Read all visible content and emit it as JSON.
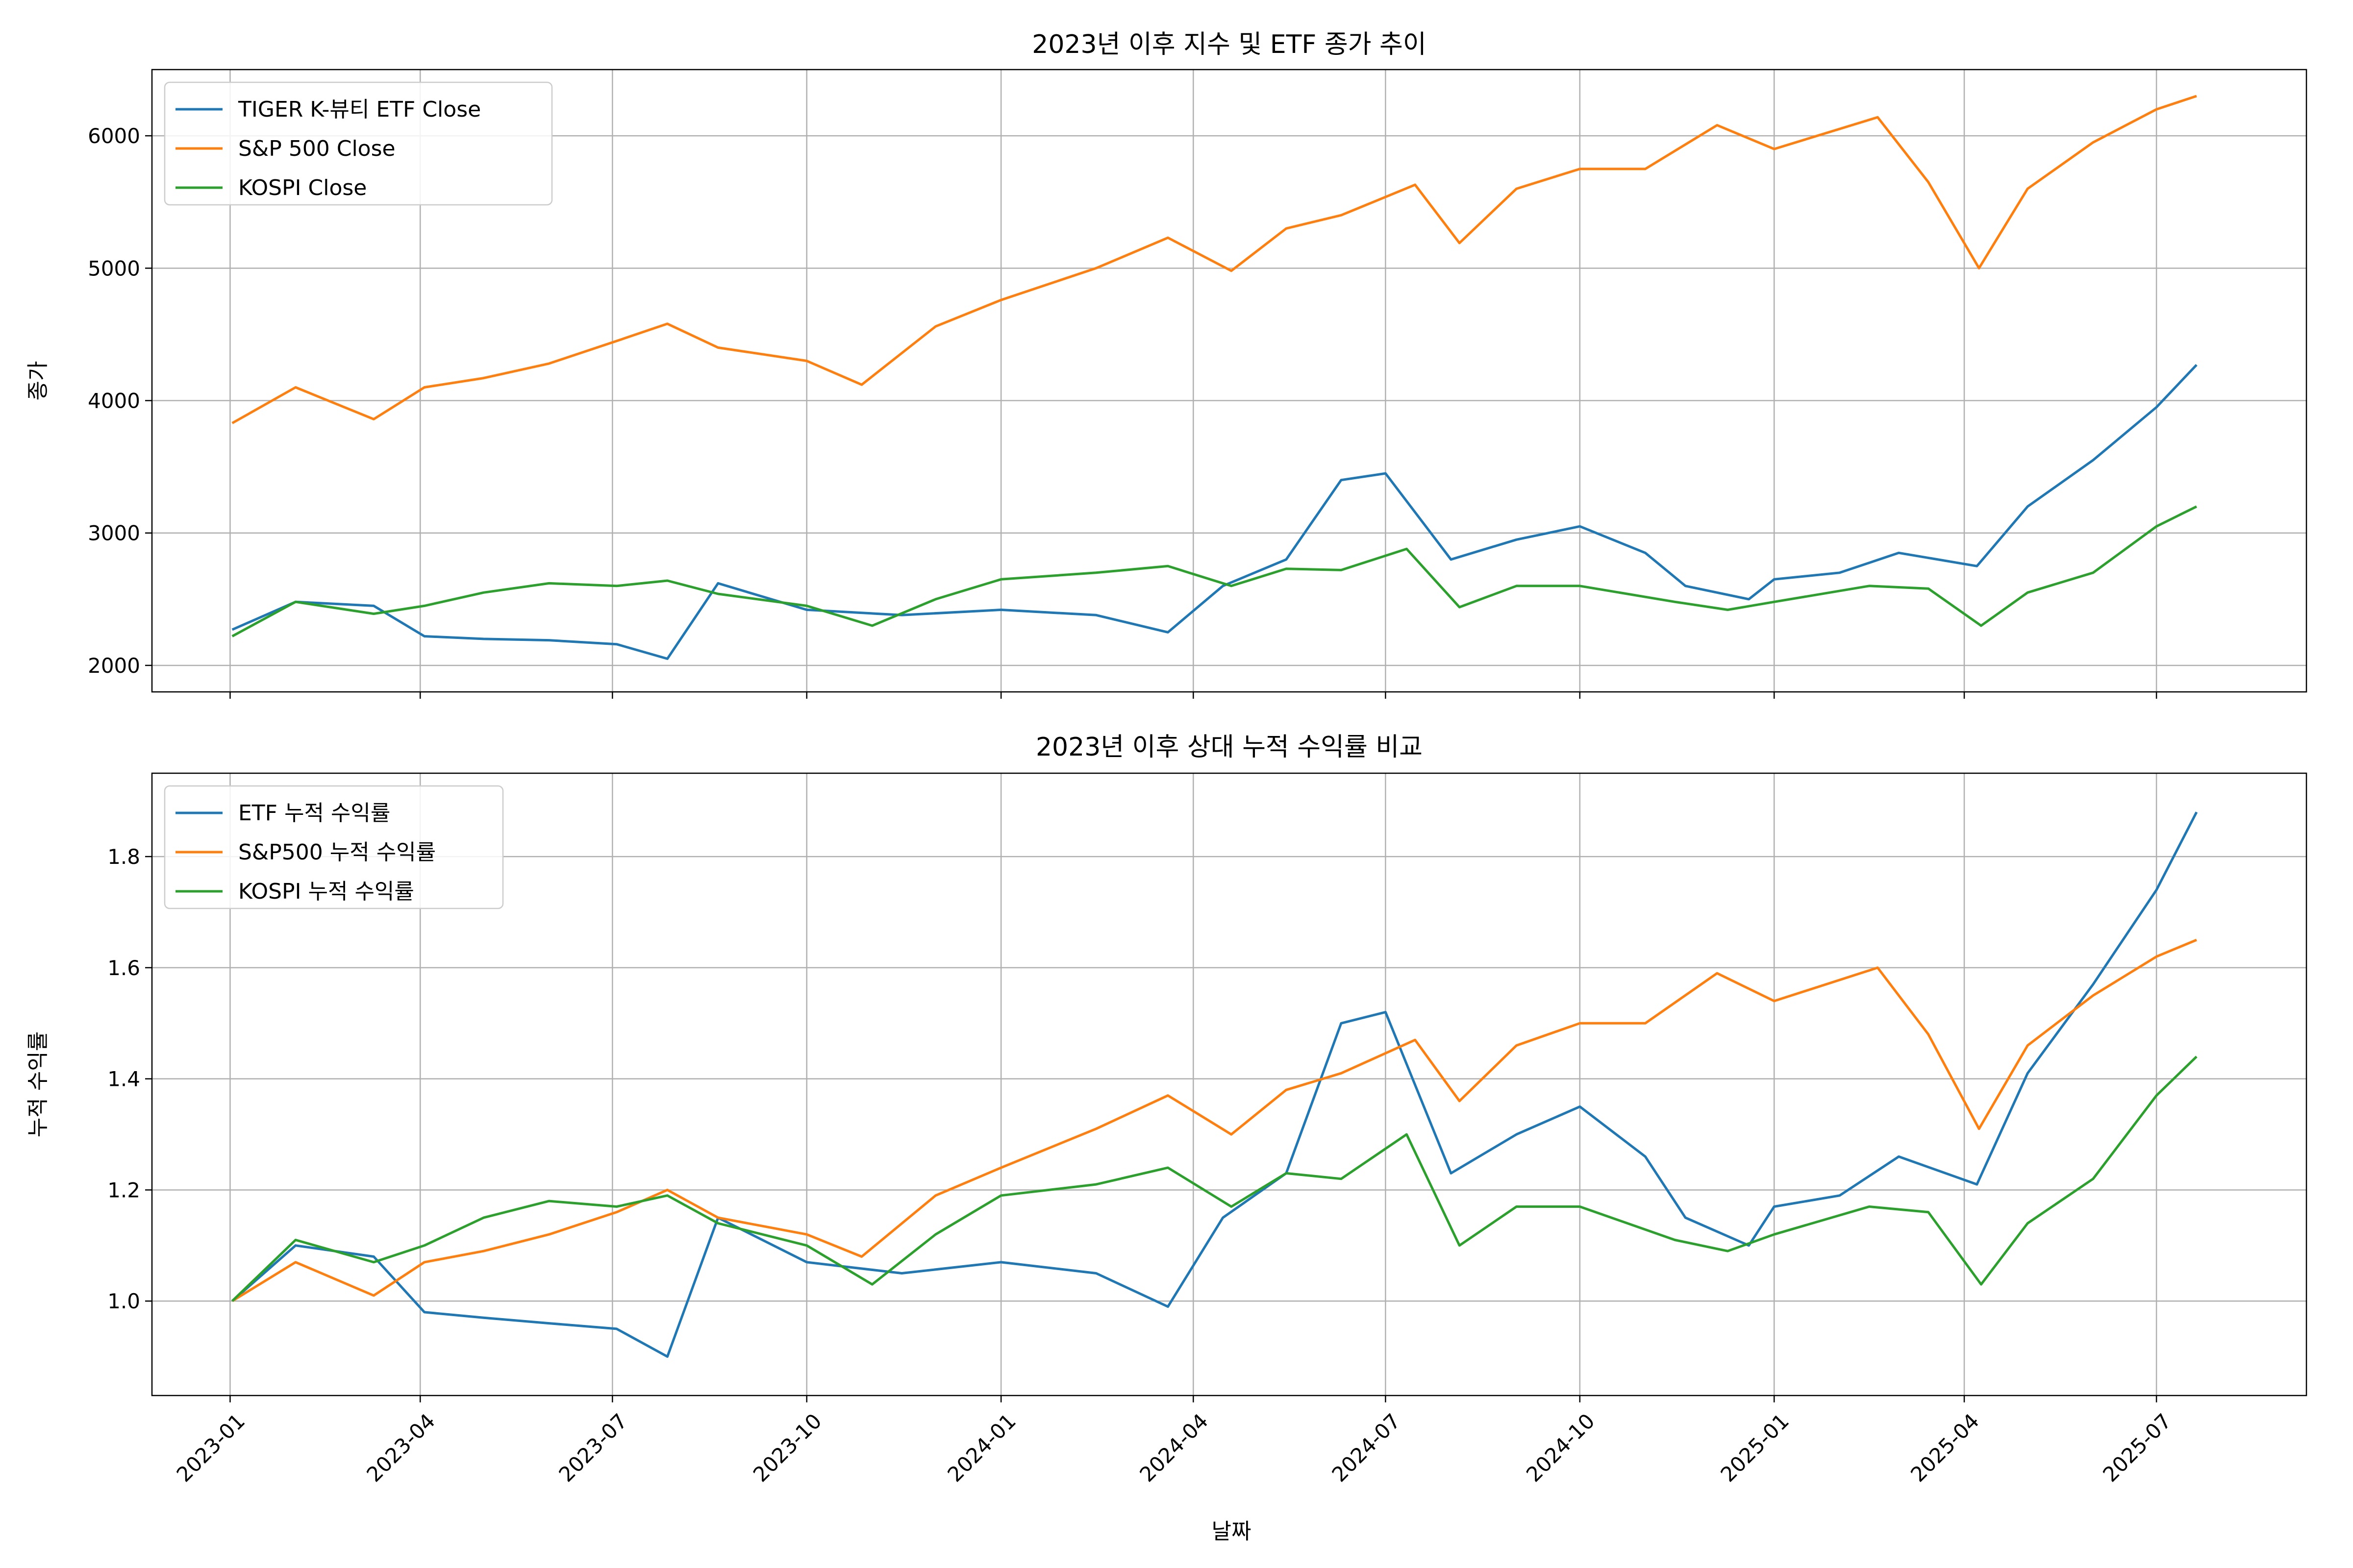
{
  "xlabel": "날짜",
  "x_ticks": [
    "2023-01",
    "2023-04",
    "2023-07",
    "2023-10",
    "2024-01",
    "2024-04",
    "2024-07",
    "2024-10",
    "2025-01",
    "2025-04",
    "2025-07"
  ],
  "colors": {
    "blue": "#1f77b4",
    "orange": "#ff7f0e",
    "green": "#2ca02c",
    "grid": "#b0b0b0"
  },
  "chart_data": [
    {
      "type": "line",
      "title": "2023년 이후 지수 및 ETF 종가 추이",
      "ylabel": "종가",
      "ylim": [
        1800,
        6500
      ],
      "y_ticks": [
        2000,
        3000,
        4000,
        5000,
        6000
      ],
      "grid": true,
      "legend_position": "top-left",
      "series": [
        {
          "name": "TIGER K-뷰티 ETF Close",
          "color": "#1f77b4",
          "x": [
            "2023-01-02",
            "2023-02-01",
            "2023-03-10",
            "2023-04-03",
            "2023-05-01",
            "2023-06-01",
            "2023-07-03",
            "2023-07-27",
            "2023-08-20",
            "2023-10-01",
            "2023-11-15",
            "2024-01-01",
            "2024-02-15",
            "2024-03-20",
            "2024-04-15",
            "2024-05-15",
            "2024-06-10",
            "2024-07-01",
            "2024-08-01",
            "2024-09-01",
            "2024-10-01",
            "2024-11-01",
            "2024-11-20",
            "2024-12-20",
            "2025-01-01",
            "2025-02-01",
            "2025-03-01",
            "2025-04-07",
            "2025-05-01",
            "2025-06-01",
            "2025-07-01",
            "2025-07-20"
          ],
          "values": [
            2270,
            2480,
            2450,
            2220,
            2200,
            2190,
            2160,
            2050,
            2620,
            2420,
            2380,
            2420,
            2380,
            2250,
            2600,
            2800,
            3400,
            3450,
            2800,
            2950,
            3050,
            2850,
            2600,
            2500,
            2650,
            2700,
            2850,
            2750,
            3200,
            3550,
            3950,
            4270
          ]
        },
        {
          "name": "S&P 500 Close",
          "color": "#ff7f0e",
          "x": [
            "2023-01-02",
            "2023-02-01",
            "2023-03-10",
            "2023-04-03",
            "2023-05-01",
            "2023-06-01",
            "2023-07-03",
            "2023-07-27",
            "2023-08-20",
            "2023-10-01",
            "2023-10-27",
            "2023-12-01",
            "2024-01-01",
            "2024-02-15",
            "2024-03-20",
            "2024-04-19",
            "2024-05-15",
            "2024-06-10",
            "2024-07-15",
            "2024-08-05",
            "2024-09-01",
            "2024-10-01",
            "2024-11-01",
            "2024-12-05",
            "2025-01-01",
            "2025-02-19",
            "2025-03-15",
            "2025-04-08",
            "2025-05-01",
            "2025-06-01",
            "2025-07-01",
            "2025-07-20"
          ],
          "values": [
            3830,
            4100,
            3860,
            4100,
            4170,
            4280,
            4450,
            4580,
            4400,
            4300,
            4120,
            4560,
            4760,
            5000,
            5230,
            4980,
            5300,
            5400,
            5630,
            5190,
            5600,
            5750,
            5750,
            6080,
            5900,
            6140,
            5650,
            5000,
            5600,
            5950,
            6200,
            6300
          ]
        },
        {
          "name": "KOSPI Close",
          "color": "#2ca02c",
          "x": [
            "2023-01-02",
            "2023-02-01",
            "2023-03-10",
            "2023-04-03",
            "2023-05-01",
            "2023-06-01",
            "2023-07-03",
            "2023-07-27",
            "2023-08-20",
            "2023-10-01",
            "2023-11-01",
            "2023-12-01",
            "2024-01-01",
            "2024-02-15",
            "2024-03-20",
            "2024-04-19",
            "2024-05-15",
            "2024-06-10",
            "2024-07-11",
            "2024-08-05",
            "2024-09-01",
            "2024-10-01",
            "2024-11-15",
            "2024-12-10",
            "2025-01-01",
            "2025-02-15",
            "2025-03-15",
            "2025-04-09",
            "2025-05-01",
            "2025-06-01",
            "2025-07-01",
            "2025-07-20"
          ],
          "values": [
            2220,
            2480,
            2390,
            2450,
            2550,
            2620,
            2600,
            2640,
            2540,
            2450,
            2300,
            2500,
            2650,
            2700,
            2750,
            2600,
            2730,
            2720,
            2880,
            2440,
            2600,
            2600,
            2480,
            2420,
            2480,
            2600,
            2580,
            2300,
            2550,
            2700,
            3050,
            3200
          ]
        }
      ]
    },
    {
      "type": "line",
      "title": "2023년 이후 상대 누적 수익률 비교",
      "ylabel": "누적 수익률",
      "ylim": [
        0.83,
        1.95
      ],
      "y_ticks": [
        "1.0",
        "1.2",
        "1.4",
        "1.6",
        "1.8"
      ],
      "grid": true,
      "legend_position": "top-left",
      "series": [
        {
          "name": "ETF 누적 수익률",
          "color": "#1f77b4",
          "x": [
            "2023-01-02",
            "2023-02-01",
            "2023-03-10",
            "2023-04-03",
            "2023-05-01",
            "2023-06-01",
            "2023-07-03",
            "2023-07-27",
            "2023-08-20",
            "2023-10-01",
            "2023-11-15",
            "2024-01-01",
            "2024-02-15",
            "2024-03-20",
            "2024-04-15",
            "2024-05-15",
            "2024-06-10",
            "2024-07-01",
            "2024-08-01",
            "2024-09-01",
            "2024-10-01",
            "2024-11-01",
            "2024-11-20",
            "2024-12-20",
            "2025-01-01",
            "2025-02-01",
            "2025-03-01",
            "2025-04-07",
            "2025-05-01",
            "2025-06-01",
            "2025-07-01",
            "2025-07-20"
          ],
          "values": [
            1.0,
            1.1,
            1.08,
            0.98,
            0.97,
            0.96,
            0.95,
            0.9,
            1.15,
            1.07,
            1.05,
            1.07,
            1.05,
            0.99,
            1.15,
            1.23,
            1.5,
            1.52,
            1.23,
            1.3,
            1.35,
            1.26,
            1.15,
            1.1,
            1.17,
            1.19,
            1.26,
            1.21,
            1.41,
            1.57,
            1.74,
            1.88
          ]
        },
        {
          "name": "S&P500 누적 수익률",
          "color": "#ff7f0e",
          "x": [
            "2023-01-02",
            "2023-02-01",
            "2023-03-10",
            "2023-04-03",
            "2023-05-01",
            "2023-06-01",
            "2023-07-03",
            "2023-07-27",
            "2023-08-20",
            "2023-10-01",
            "2023-10-27",
            "2023-12-01",
            "2024-01-01",
            "2024-02-15",
            "2024-03-20",
            "2024-04-19",
            "2024-05-15",
            "2024-06-10",
            "2024-07-15",
            "2024-08-05",
            "2024-09-01",
            "2024-10-01",
            "2024-11-01",
            "2024-12-05",
            "2025-01-01",
            "2025-02-19",
            "2025-03-15",
            "2025-04-08",
            "2025-05-01",
            "2025-06-01",
            "2025-07-01",
            "2025-07-20"
          ],
          "values": [
            1.0,
            1.07,
            1.01,
            1.07,
            1.09,
            1.12,
            1.16,
            1.2,
            1.15,
            1.12,
            1.08,
            1.19,
            1.24,
            1.31,
            1.37,
            1.3,
            1.38,
            1.41,
            1.47,
            1.36,
            1.46,
            1.5,
            1.5,
            1.59,
            1.54,
            1.6,
            1.48,
            1.31,
            1.46,
            1.55,
            1.62,
            1.65
          ]
        },
        {
          "name": "KOSPI 누적 수익률",
          "color": "#2ca02c",
          "x": [
            "2023-01-02",
            "2023-02-01",
            "2023-03-10",
            "2023-04-03",
            "2023-05-01",
            "2023-06-01",
            "2023-07-03",
            "2023-07-27",
            "2023-08-20",
            "2023-10-01",
            "2023-11-01",
            "2023-12-01",
            "2024-01-01",
            "2024-02-15",
            "2024-03-20",
            "2024-04-19",
            "2024-05-15",
            "2024-06-10",
            "2024-07-11",
            "2024-08-05",
            "2024-09-01",
            "2024-10-01",
            "2024-11-15",
            "2024-12-10",
            "2025-01-01",
            "2025-02-15",
            "2025-03-15",
            "2025-04-09",
            "2025-05-01",
            "2025-06-01",
            "2025-07-01",
            "2025-07-20"
          ],
          "values": [
            1.0,
            1.11,
            1.07,
            1.1,
            1.15,
            1.18,
            1.17,
            1.19,
            1.14,
            1.1,
            1.03,
            1.12,
            1.19,
            1.21,
            1.24,
            1.17,
            1.23,
            1.22,
            1.3,
            1.1,
            1.17,
            1.17,
            1.11,
            1.09,
            1.12,
            1.17,
            1.16,
            1.03,
            1.14,
            1.22,
            1.37,
            1.44
          ]
        }
      ]
    }
  ]
}
